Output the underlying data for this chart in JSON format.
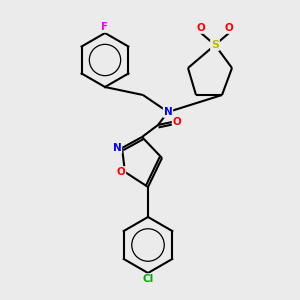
{
  "bg_color": "#ebebeb",
  "atom_colors": {
    "C": "#000000",
    "N": "#0000ff",
    "O": "#ff0000",
    "S": "#bbbb00",
    "F": "#ff00ff",
    "Cl": "#00aa00"
  },
  "bond_color": "#000000",
  "lw": 1.5,
  "fs": 7.5
}
